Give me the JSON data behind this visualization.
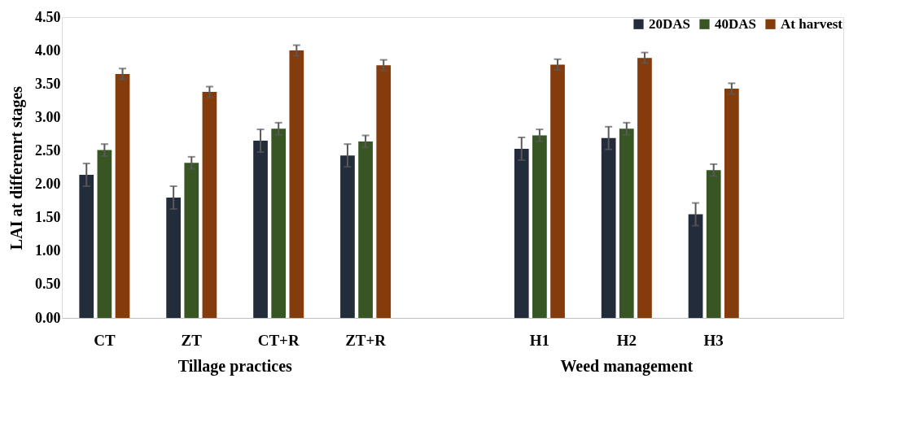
{
  "chart_data": {
    "type": "bar",
    "ylabel": "LAI at differenrt stages",
    "categories": [
      "CT",
      "ZT",
      "CT+R",
      "ZT+R",
      null,
      "H1",
      "H2",
      "H3",
      null
    ],
    "series": [
      {
        "name": "20DAS",
        "color": "#232c3b",
        "values": [
          2.14,
          1.8,
          2.65,
          2.43,
          null,
          2.53,
          2.69,
          1.55,
          null
        ],
        "errors": [
          0.17,
          0.17,
          0.17,
          0.17,
          null,
          0.17,
          0.17,
          0.17,
          null
        ]
      },
      {
        "name": "40DAS",
        "color": "#375623",
        "values": [
          2.51,
          2.32,
          2.83,
          2.64,
          null,
          2.73,
          2.83,
          2.21,
          null
        ],
        "errors": [
          0.09,
          0.09,
          0.09,
          0.09,
          null,
          0.09,
          0.09,
          0.09,
          null
        ]
      },
      {
        "name": "At harvest",
        "color": "#843c0c",
        "values": [
          3.65,
          3.38,
          4.0,
          3.78,
          null,
          3.79,
          3.89,
          3.43,
          null
        ],
        "errors": [
          0.08,
          0.08,
          0.08,
          0.08,
          null,
          0.08,
          0.08,
          0.08,
          null
        ]
      }
    ],
    "annotations": [
      "Tillage practices",
      "Weed management"
    ],
    "ylim": [
      0,
      4.5
    ],
    "yticks": [
      {
        "value": 0,
        "label": "0.00"
      },
      {
        "value": 0.5,
        "label": "0.50"
      },
      {
        "value": 1,
        "label": "1.00"
      },
      {
        "value": 1.5,
        "label": "1.50"
      },
      {
        "value": 2,
        "label": "2.00"
      },
      {
        "value": 2.5,
        "label": "2.50"
      },
      {
        "value": 3,
        "label": "3.00"
      },
      {
        "value": 3.5,
        "label": "3.50"
      },
      {
        "value": 4,
        "label": "4.00"
      },
      {
        "value": 4.5,
        "label": "4.50"
      }
    ],
    "grid": false,
    "legend": "top right"
  }
}
